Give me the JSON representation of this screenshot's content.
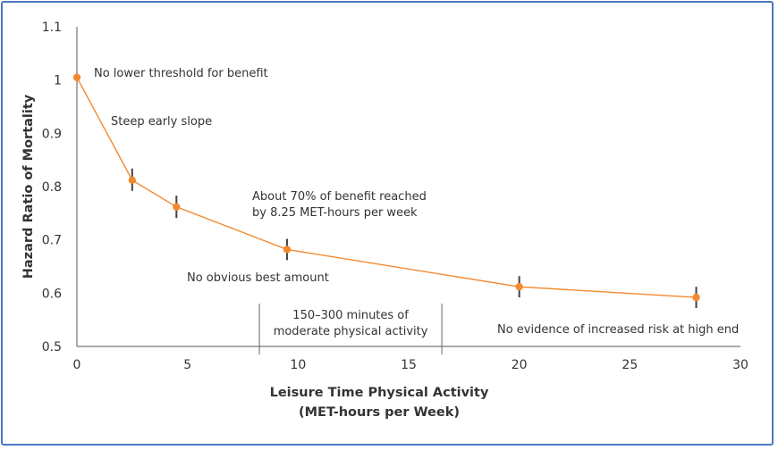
{
  "chart_data": {
    "type": "line",
    "title": "",
    "xlabel": [
      "Leisure Time Physical Activity",
      "(MET-hours per Week)"
    ],
    "ylabel": "Hazard Ratio of Mortality",
    "xlim": [
      0,
      30
    ],
    "ylim": [
      0.5,
      1.1
    ],
    "x_ticks": [
      "0",
      "5",
      "10",
      "15",
      "20",
      "25",
      "30"
    ],
    "y_ticks": [
      "0.5",
      "0.6",
      "0.7",
      "0.8",
      "0.9",
      "1",
      "1.1"
    ],
    "grid": false,
    "line_color": "#f28a2e",
    "points": [
      {
        "x": 0,
        "y": 1.005,
        "err_low": null,
        "err_high": null
      },
      {
        "x": 2.5,
        "y": 0.812,
        "err_low": 0.792,
        "err_high": 0.834
      },
      {
        "x": 4.5,
        "y": 0.762,
        "err_low": 0.741,
        "err_high": 0.783
      },
      {
        "x": 9.5,
        "y": 0.682,
        "err_low": 0.662,
        "err_high": 0.702
      },
      {
        "x": 20,
        "y": 0.612,
        "err_low": 0.592,
        "err_high": 0.632
      },
      {
        "x": 28,
        "y": 0.592,
        "err_low": 0.572,
        "err_high": 0.612
      }
    ],
    "band": {
      "from": 8.25,
      "to": 16.5,
      "lines": [
        "150–300 minutes of",
        "moderate physical activity"
      ]
    },
    "annotations": [
      {
        "id": "no-lower-threshold",
        "lines": [
          "No lower threshold for benefit"
        ]
      },
      {
        "id": "steep-early-slope",
        "lines": [
          "Steep early slope"
        ]
      },
      {
        "id": "seventy-percent",
        "lines": [
          "About 70% of benefit reached",
          "by 8.25 MET-hours per week"
        ]
      },
      {
        "id": "no-best-amount",
        "lines": [
          "No obvious best amount"
        ]
      },
      {
        "id": "no-increased-risk",
        "lines": [
          "No evidence of increased risk at high end"
        ]
      }
    ]
  }
}
